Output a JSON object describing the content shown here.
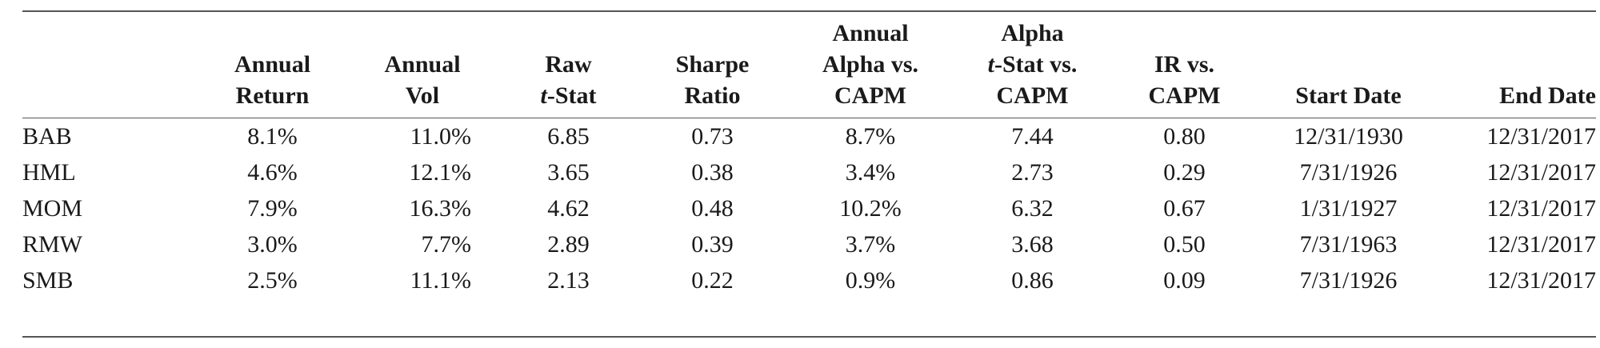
{
  "table": {
    "headers": {
      "name": "",
      "annual_return": [
        "Annual",
        "Return"
      ],
      "annual_vol": [
        "Annual",
        "Vol"
      ],
      "raw_tstat": [
        "Raw",
        "t",
        "-Stat"
      ],
      "sharpe": [
        "Sharpe",
        "Ratio"
      ],
      "alpha_capm": [
        "Annual",
        "Alpha vs.",
        "CAPM"
      ],
      "alpha_tstat": [
        "Alpha",
        "t",
        "-Stat vs.",
        "CAPM"
      ],
      "ir_capm": [
        "IR vs.",
        "CAPM"
      ],
      "start_date": "Start Date",
      "end_date": "End Date"
    },
    "rows": [
      [
        "BAB",
        "8.1%",
        "11.0%",
        "6.85",
        "0.73",
        "8.7%",
        "7.44",
        "0.80",
        "12/31/1930",
        "12/31/2017"
      ],
      [
        "HML",
        "4.6%",
        "12.1%",
        "3.65",
        "0.38",
        "3.4%",
        "2.73",
        "0.29",
        "7/31/1926",
        "12/31/2017"
      ],
      [
        "MOM",
        "7.9%",
        "16.3%",
        "4.62",
        "0.48",
        "10.2%",
        "6.32",
        "0.67",
        "1/31/1927",
        "12/31/2017"
      ],
      [
        "RMW",
        "3.0%",
        "7.7%",
        "2.89",
        "0.39",
        "3.7%",
        "3.68",
        "0.50",
        "7/31/1963",
        "12/31/2017"
      ],
      [
        "SMB",
        "2.5%",
        "11.1%",
        "2.13",
        "0.22",
        "0.9%",
        "0.86",
        "0.09",
        "7/31/1926",
        "12/31/2017"
      ]
    ]
  }
}
